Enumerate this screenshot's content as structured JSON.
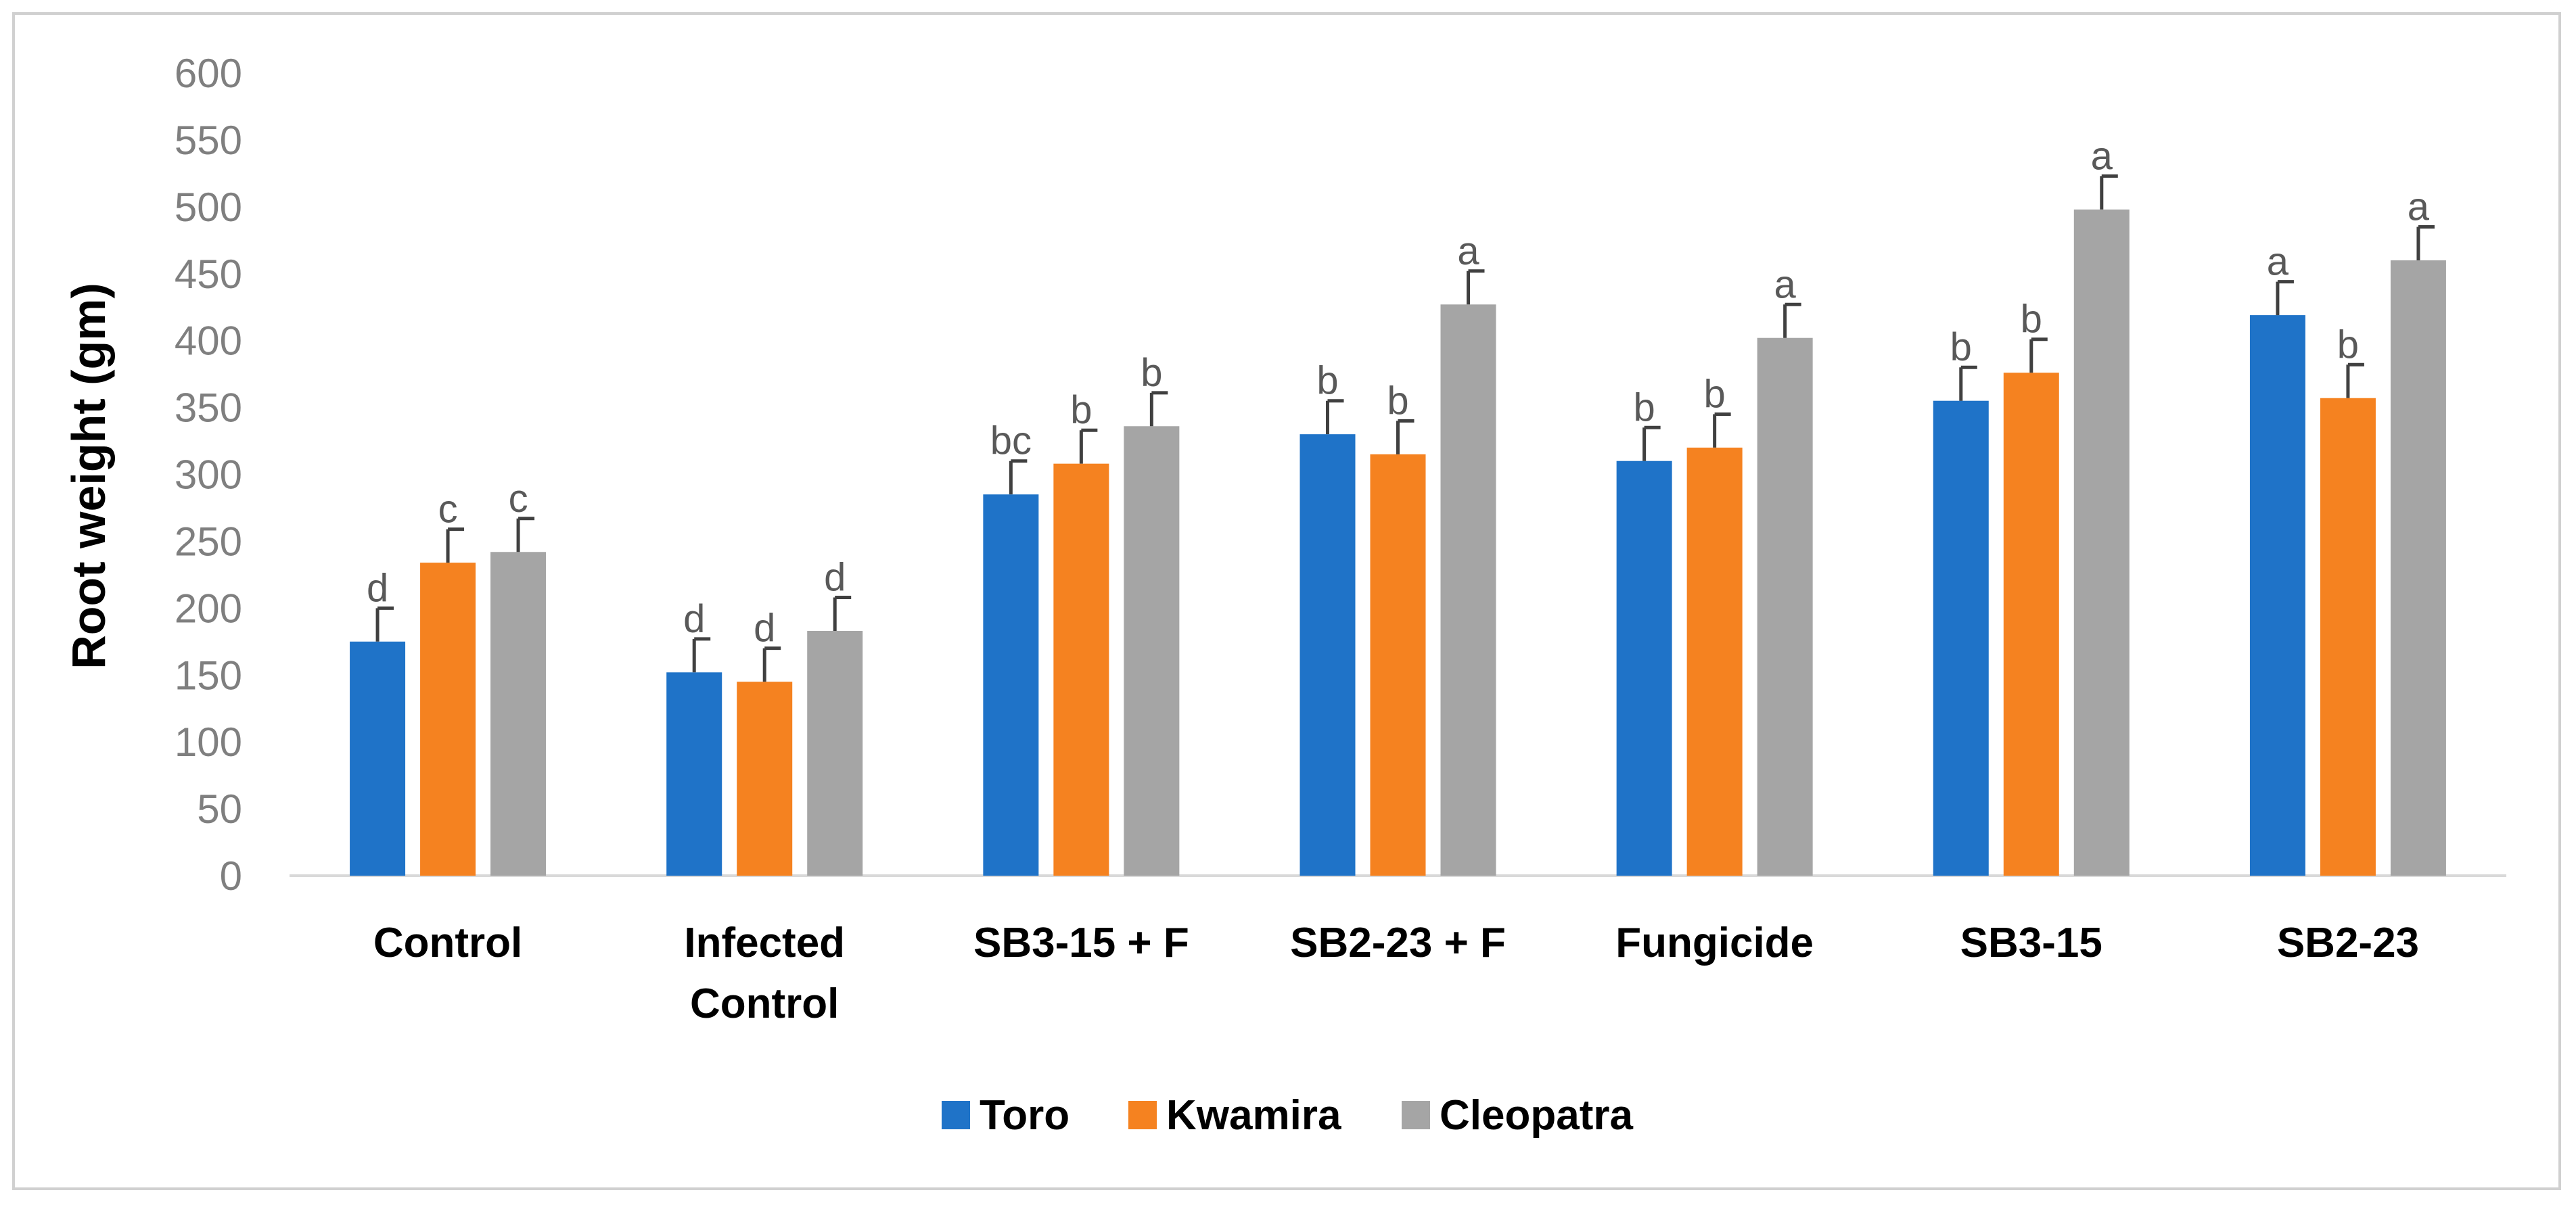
{
  "chart_data": {
    "type": "bar",
    "title": "",
    "xlabel": "",
    "ylabel": "Root weight (gm)",
    "ylim": [
      0,
      600
    ],
    "yticks": [
      "0",
      "50",
      "100",
      "150",
      "200",
      "250",
      "300",
      "350",
      "400",
      "450",
      "500",
      "550",
      "600"
    ],
    "categories": [
      "Control",
      "Infected Control",
      "SB3-15 + F",
      "SB2-23 + F",
      "Fungicide",
      "SB3-15",
      "SB2-23"
    ],
    "category_lines": [
      [
        "Control"
      ],
      [
        "Infected",
        "Control"
      ],
      [
        "SB3-15 + F"
      ],
      [
        "SB2-23 + F"
      ],
      [
        "Fungicide"
      ],
      [
        "SB3-15"
      ],
      [
        "SB2-23"
      ]
    ],
    "legend_position": "bottom-center",
    "series": [
      {
        "name": "Toro",
        "color": "#1f73c8",
        "values": [
          175,
          152,
          285,
          330,
          310,
          355,
          419
        ],
        "errors": [
          25,
          25,
          25,
          25,
          25,
          25,
          25
        ],
        "letters": [
          "d",
          "d",
          "bc",
          "b",
          "b",
          "b",
          "a"
        ]
      },
      {
        "name": "Kwamira",
        "color": "#f58220",
        "values": [
          234,
          145,
          308,
          315,
          320,
          376,
          357
        ],
        "errors": [
          25,
          25,
          25,
          25,
          25,
          25,
          25
        ],
        "letters": [
          "c",
          "d",
          "b",
          "b",
          "b",
          "b",
          "b"
        ]
      },
      {
        "name": "Cleopatra",
        "color": "#a5a5a5",
        "values": [
          242,
          183,
          336,
          427,
          402,
          498,
          460
        ],
        "errors": [
          25,
          25,
          25,
          25,
          25,
          25,
          25
        ],
        "letters": [
          "c",
          "d",
          "b",
          "a",
          "a",
          "a",
          "a"
        ]
      }
    ]
  }
}
